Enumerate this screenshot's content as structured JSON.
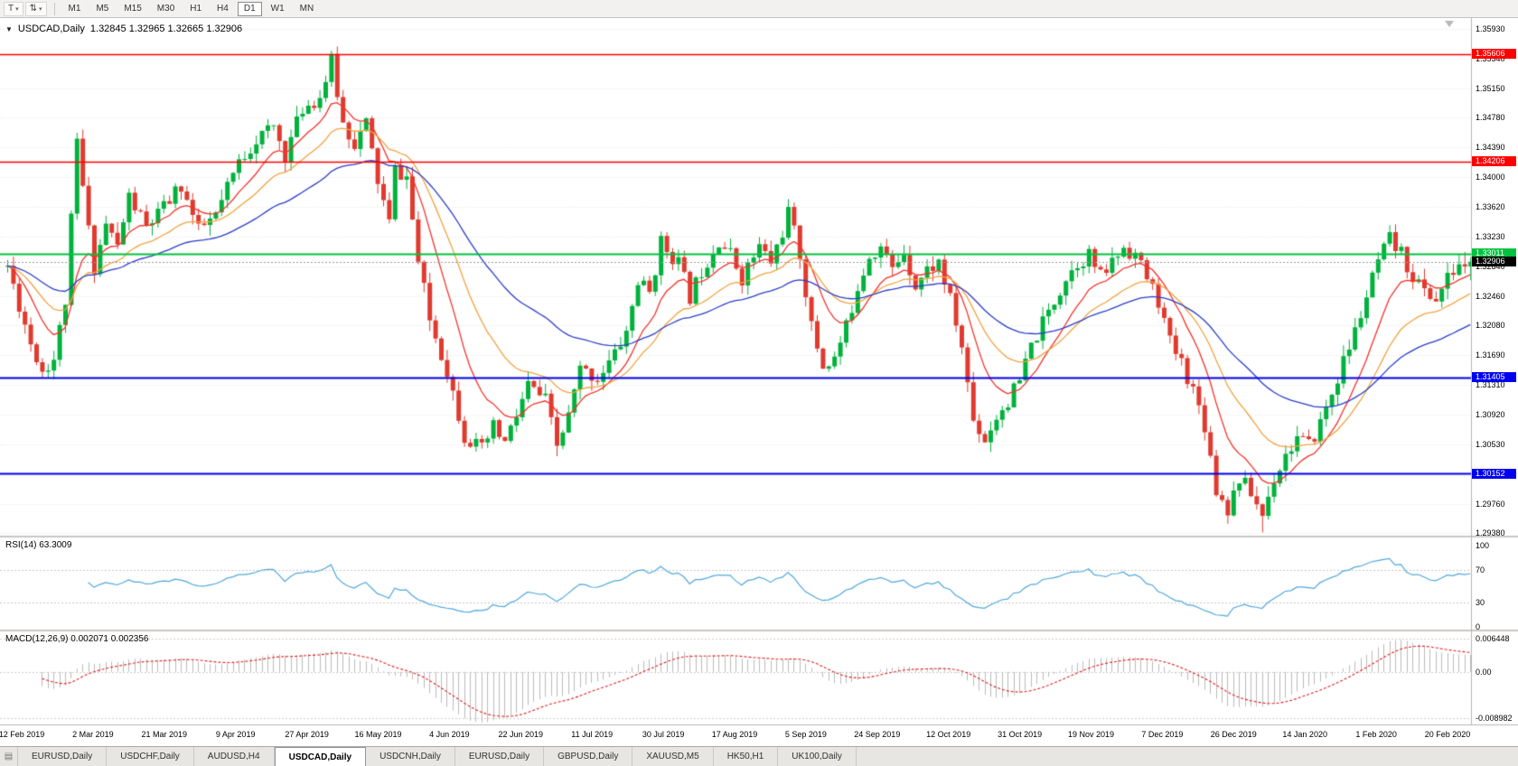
{
  "toolbar": {
    "tools": [
      {
        "glyph": "T",
        "dropdown": "▾"
      },
      {
        "glyph": "⇅",
        "dropdown": "▾"
      }
    ],
    "timeframes": [
      "M1",
      "M5",
      "M15",
      "M30",
      "H1",
      "H4",
      "D1",
      "W1",
      "MN"
    ],
    "active_timeframe": "D1"
  },
  "chart": {
    "expand_glyph": "▼",
    "symbol_title": "USDCAD,Daily",
    "ohlc_text": "1.32845 1.32965 1.32665 1.32906"
  },
  "chart_data": {
    "type": "candlestick",
    "symbol": "USDCAD",
    "timeframe": "Daily",
    "current_ohlc": {
      "open": 1.32845,
      "high": 1.32965,
      "low": 1.32665,
      "close": 1.32906
    },
    "num_candles": 254,
    "y_axis": {
      "max": 1.3607,
      "min": 1.2936,
      "tick_labels": [
        "1.35930",
        "1.35540",
        "1.35150",
        "1.34780",
        "1.34390",
        "1.34000",
        "1.33620",
        "1.33230",
        "1.32840",
        "1.32460",
        "1.32080",
        "1.31690",
        "1.31310",
        "1.30920",
        "1.30530",
        "1.30140",
        "1.29760",
        "1.29380"
      ]
    },
    "x_labels": [
      "12 Feb 2019",
      "2 Mar 2019",
      "21 Mar 2019",
      "9 Apr 2019",
      "27 Apr 2019",
      "16 May 2019",
      "4 Jun 2019",
      "22 Jun 2019",
      "11 Jul 2019",
      "30 Jul 2019",
      "17 Aug 2019",
      "5 Sep 2019",
      "24 Sep 2019",
      "12 Oct 2019",
      "31 Oct 2019",
      "19 Nov 2019",
      "7 Dec 2019",
      "26 Dec 2019",
      "14 Jan 2020",
      "1 Feb 2020",
      "20 Feb 2020"
    ],
    "price_path_anchors": [
      [
        0,
        1.3285
      ],
      [
        2,
        1.3235
      ],
      [
        4,
        1.3185
      ],
      [
        6,
        1.315
      ],
      [
        8,
        1.3165
      ],
      [
        10,
        1.324
      ],
      [
        12,
        1.3445
      ],
      [
        14,
        1.333
      ],
      [
        15,
        1.3285
      ],
      [
        17,
        1.334
      ],
      [
        19,
        1.331
      ],
      [
        21,
        1.3375
      ],
      [
        24,
        1.3335
      ],
      [
        27,
        1.336
      ],
      [
        30,
        1.339
      ],
      [
        33,
        1.333
      ],
      [
        36,
        1.335
      ],
      [
        40,
        1.342
      ],
      [
        43,
        1.345
      ],
      [
        46,
        1.3465
      ],
      [
        48,
        1.343
      ],
      [
        51,
        1.349
      ],
      [
        54,
        1.3505
      ],
      [
        56,
        1.355
      ],
      [
        58,
        1.347
      ],
      [
        60,
        1.3445
      ],
      [
        62,
        1.347
      ],
      [
        64,
        1.3395
      ],
      [
        66,
        1.334
      ],
      [
        67,
        1.341
      ],
      [
        69,
        1.34
      ],
      [
        71,
        1.329
      ],
      [
        73,
        1.3215
      ],
      [
        76,
        1.315
      ],
      [
        79,
        1.3065
      ],
      [
        82,
        1.3045
      ],
      [
        84,
        1.3075
      ],
      [
        86,
        1.3055
      ],
      [
        88,
        1.309
      ],
      [
        90,
        1.313
      ],
      [
        93,
        1.311
      ],
      [
        95,
        1.305
      ],
      [
        97,
        1.309
      ],
      [
        99,
        1.315
      ],
      [
        102,
        1.314
      ],
      [
        105,
        1.317
      ],
      [
        107,
        1.32
      ],
      [
        109,
        1.3265
      ],
      [
        111,
        1.325
      ],
      [
        113,
        1.3315
      ],
      [
        116,
        1.329
      ],
      [
        118,
        1.3245
      ],
      [
        120,
        1.328
      ],
      [
        123,
        1.332
      ],
      [
        125,
        1.33
      ],
      [
        127,
        1.327
      ],
      [
        130,
        1.331
      ],
      [
        132,
        1.329
      ],
      [
        134,
        1.333
      ],
      [
        135,
        1.3355
      ],
      [
        137,
        1.33
      ],
      [
        139,
        1.3205
      ],
      [
        141,
        1.3155
      ],
      [
        143,
        1.3165
      ],
      [
        145,
        1.3205
      ],
      [
        147,
        1.326
      ],
      [
        149,
        1.33
      ],
      [
        151,
        1.331
      ],
      [
        153,
        1.328
      ],
      [
        155,
        1.3305
      ],
      [
        157,
        1.326
      ],
      [
        159,
        1.328
      ],
      [
        161,
        1.329
      ],
      [
        163,
        1.324
      ],
      [
        165,
        1.318
      ],
      [
        167,
        1.3085
      ],
      [
        169,
        1.306
      ],
      [
        171,
        1.309
      ],
      [
        173,
        1.311
      ],
      [
        175,
        1.3135
      ],
      [
        177,
        1.318
      ],
      [
        179,
        1.321
      ],
      [
        181,
        1.324
      ],
      [
        183,
        1.327
      ],
      [
        185,
        1.329
      ],
      [
        187,
        1.33
      ],
      [
        189,
        1.327
      ],
      [
        191,
        1.329
      ],
      [
        193,
        1.331
      ],
      [
        195,
        1.33
      ],
      [
        197,
        1.327
      ],
      [
        199,
        1.324
      ],
      [
        201,
        1.3185
      ],
      [
        203,
        1.316
      ],
      [
        205,
        1.3125
      ],
      [
        207,
        1.308
      ],
      [
        209,
        1.2995
      ],
      [
        211,
        1.297
      ],
      [
        213,
        1.301
      ],
      [
        215,
        1.299
      ],
      [
        217,
        1.2962
      ],
      [
        219,
        1.301
      ],
      [
        221,
        1.304
      ],
      [
        223,
        1.3062
      ],
      [
        225,
        1.305
      ],
      [
        227,
        1.3082
      ],
      [
        229,
        1.312
      ],
      [
        231,
        1.316
      ],
      [
        233,
        1.32
      ],
      [
        235,
        1.3245
      ],
      [
        237,
        1.329
      ],
      [
        239,
        1.3318
      ],
      [
        241,
        1.33
      ],
      [
        243,
        1.3272
      ],
      [
        245,
        1.3252
      ],
      [
        247,
        1.3242
      ],
      [
        249,
        1.3268
      ],
      [
        251,
        1.3288
      ],
      [
        253,
        1.3291
      ]
    ],
    "horizontal_levels": [
      {
        "price": 1.35606,
        "label": "1.35606",
        "color": "#FF0000",
        "width": 1.4
      },
      {
        "price": 1.34206,
        "label": "1.34206",
        "color": "#FF0000",
        "width": 1.4
      },
      {
        "price": 1.33011,
        "label": "1.33011",
        "color": "#00C23E",
        "width": 2
      },
      {
        "price": 1.31405,
        "label": "1.31405",
        "color": "#0000F0",
        "width": 2
      },
      {
        "price": 1.30152,
        "label": "1.30152",
        "color": "#0000F0",
        "width": 2
      }
    ],
    "current_price_badge": {
      "price": 1.32906,
      "label": "1.32906",
      "color": "#000000"
    },
    "candle_colors": {
      "bull": "#00B23C",
      "bear": "#E03A2E"
    },
    "moving_averages": [
      {
        "period": 10,
        "color": "#F5322A"
      },
      {
        "period": 21,
        "color": "#F2A440"
      },
      {
        "period": 45,
        "color": "#2C3EC8"
      }
    ],
    "rsi": {
      "label": "RSI(14) 63.3009",
      "period": 14,
      "current": 63.3009,
      "axis_labels": [
        "100",
        "70",
        "30",
        "0"
      ],
      "guide_levels": [
        70,
        30
      ],
      "color": "#4FA8DC"
    },
    "macd": {
      "label": "MACD(12,26,9) 0.002071 0.002356",
      "fast": 12,
      "slow": 26,
      "signal_period": 9,
      "main_value": 0.002071,
      "signal_value": 0.002356,
      "axis_labels": [
        "0.006448",
        "0.00",
        "-0.008982"
      ],
      "axis_max": 0.006448,
      "axis_min": -0.008982,
      "histogram_color": "#BCBCBC",
      "signal_color": "#E02020"
    }
  },
  "tab_bar": {
    "icon_glyph": "▤",
    "active_index": 3,
    "items": [
      "EURUSD,Daily",
      "USDCHF,Daily",
      "AUDUSD,H4",
      "USDCAD,Daily",
      "USDCNH,Daily",
      "EURUSD,Daily",
      "GBPUSD,Daily",
      "XAUUSD,M5",
      "HK50,H1",
      "UK100,Daily"
    ]
  }
}
